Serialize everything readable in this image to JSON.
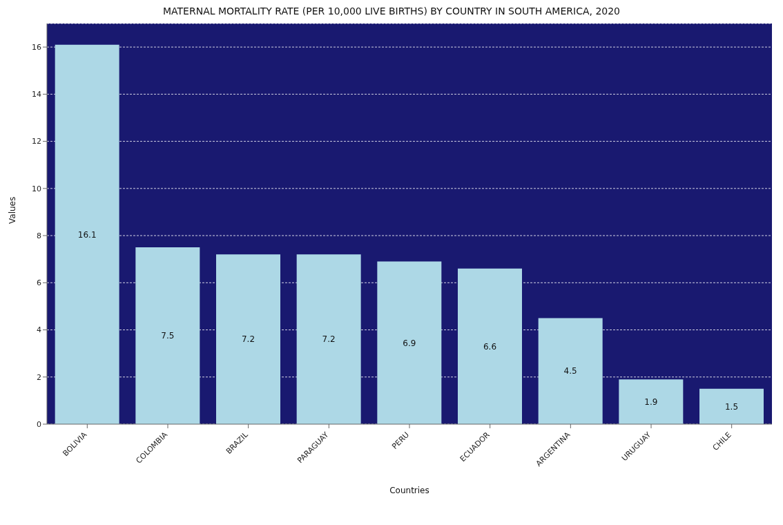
{
  "chart_data": {
    "type": "bar",
    "title": "MATERNAL MORTALITY RATE (PER 10,000 LIVE BIRTHS) BY COUNTRY IN SOUTH AMERICA, 2020",
    "xlabel": "Countries",
    "ylabel": "Values",
    "categories": [
      "BOLIVIA",
      "COLOMBIA",
      "BRAZIL",
      "PARAGUAY",
      "PERU",
      "ECUADOR",
      "ARGENTINA",
      "URUGUAY",
      "CHILE"
    ],
    "values": [
      16.1,
      7.5,
      7.2,
      7.2,
      6.9,
      6.6,
      4.5,
      1.9,
      1.5
    ],
    "color": "#add8e6",
    "ylim": [
      0,
      17
    ],
    "yticks": [
      0,
      2,
      4,
      6,
      8,
      10,
      12,
      14,
      16
    ],
    "grid": "y",
    "data_labels": true
  }
}
